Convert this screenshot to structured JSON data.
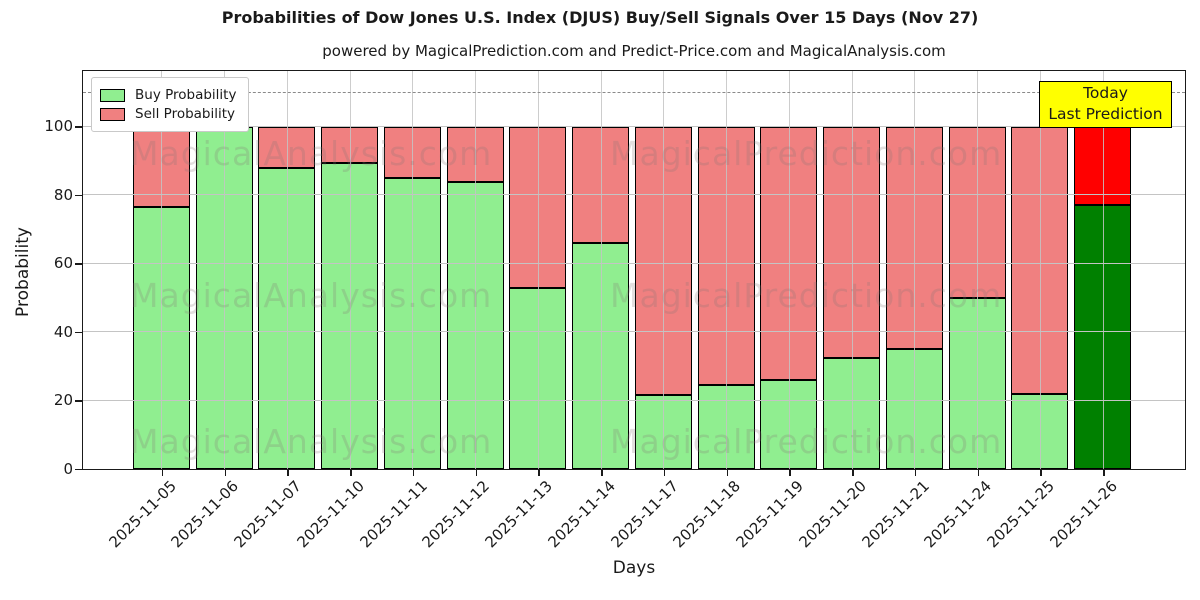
{
  "title": "Probabilities of Dow Jones U.S. Index (DJUS) Buy/Sell Signals Over 15 Days (Nov 27)",
  "subtitle": "powered by MagicalPrediction.com and Predict-Price.com and MagicalAnalysis.com",
  "legend": {
    "buy_label": "Buy Probability",
    "sell_label": "Sell Probability"
  },
  "annotation": {
    "line1": "Today",
    "line2": "Last Prediction"
  },
  "axes": {
    "ylabel": "Probability",
    "xlabel": "Days",
    "yticks": [
      0,
      20,
      40,
      60,
      80,
      100
    ],
    "ymax": 116,
    "dashed_line_y": 110,
    "grid": "on"
  },
  "watermarks": {
    "left_text": "MagicalAnalysis.com",
    "right_text": "MagicalPrediction.com"
  },
  "colors": {
    "buy": "#90EE90",
    "sell": "#F08080",
    "today_buy": "#008000",
    "today_sell": "#FF0000",
    "bar_edge": "#000000",
    "annotation_bg": "#FFFF00",
    "grid": "#c4c4c4",
    "dashed_line": "#8a8a8a"
  },
  "chart_data": {
    "type": "bar",
    "stacked": true,
    "title": "Probabilities of Dow Jones U.S. Index (DJUS) Buy/Sell Signals Over 15 Days (Nov 27)",
    "xlabel": "Days",
    "ylabel": "Probability",
    "ylim": [
      0,
      116
    ],
    "legend_position": "upper left",
    "categories": [
      "2025-11-05",
      "2025-11-06",
      "2025-11-07",
      "2025-11-10",
      "2025-11-11",
      "2025-11-12",
      "2025-11-13",
      "2025-11-14",
      "2025-11-17",
      "2025-11-18",
      "2025-11-19",
      "2025-11-20",
      "2025-11-21",
      "2025-11-24",
      "2025-11-25",
      "2025-11-26"
    ],
    "series": [
      {
        "name": "Buy Probability",
        "values": [
          76.5,
          100,
          88,
          89.5,
          85,
          84,
          53,
          66,
          21.5,
          24.5,
          26,
          32.5,
          35,
          50,
          22,
          77
        ]
      },
      {
        "name": "Sell Probability",
        "values": [
          23.5,
          0,
          12,
          10.5,
          15,
          16,
          47,
          34,
          78.5,
          75.5,
          74,
          67.5,
          65,
          50,
          78,
          23
        ]
      }
    ],
    "today_index": 15,
    "dashed_reference_line": 110
  }
}
